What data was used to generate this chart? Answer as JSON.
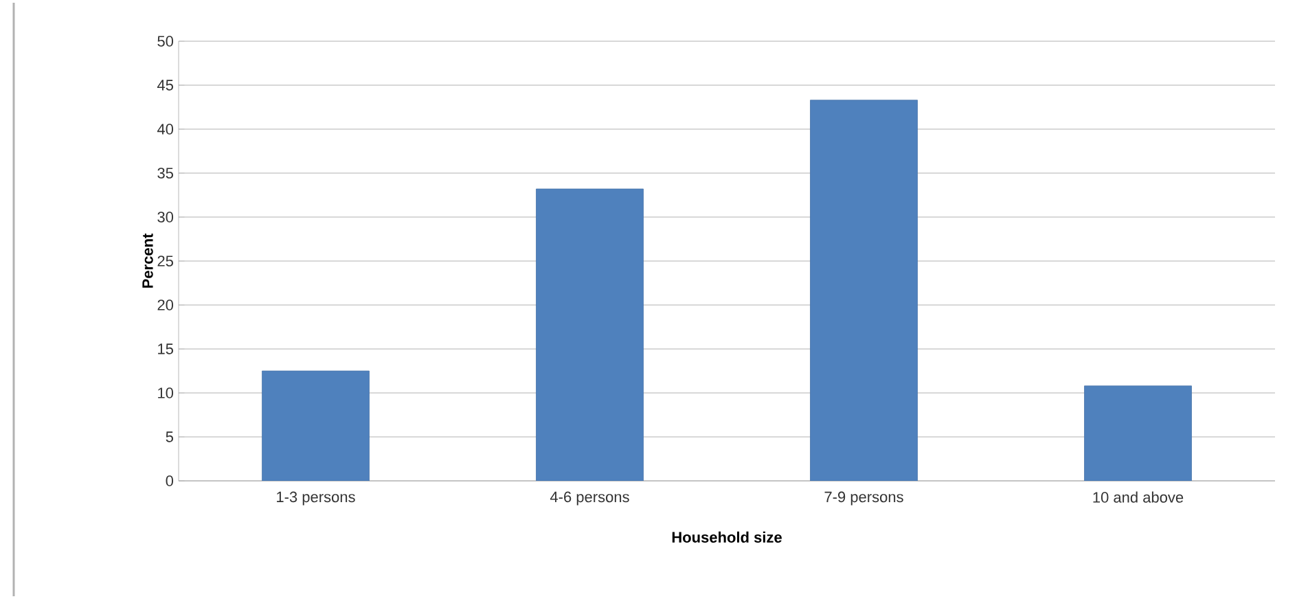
{
  "chart_data": {
    "type": "bar",
    "xlabel": "Household size",
    "ylabel": "Percent",
    "categories": [
      "1-3 persons",
      "4-6 persons",
      "7-9 persons",
      "10 and above"
    ],
    "values": [
      12.5,
      33.2,
      43.3,
      10.8
    ],
    "color": "#4f81bd",
    "ylim": [
      0,
      50
    ],
    "yticks": [
      0,
      5,
      10,
      15,
      20,
      25,
      30,
      35,
      40,
      45,
      50
    ],
    "grid": "y"
  }
}
